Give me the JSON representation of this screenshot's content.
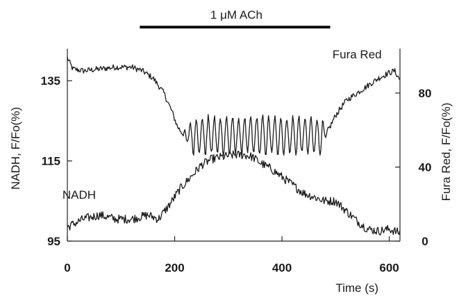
{
  "chart_data": {
    "type": "line",
    "title": "",
    "xlabel": "Time (s)",
    "ylabel_left": "NADH, F/Fo(%)",
    "ylabel_right": "Fura Red, F/Fo(%)",
    "xlim": [
      0,
      620
    ],
    "ylim_left": [
      95,
      143
    ],
    "ylim_right": [
      0,
      104
    ],
    "x_ticks": [
      "0",
      "200",
      "400",
      "600"
    ],
    "y_left_ticks": [
      "95",
      "115",
      "135"
    ],
    "y_right_ticks": [
      "0",
      "40",
      "80"
    ],
    "grid": false,
    "legend": "none",
    "annotations": {
      "stimulus_label": "1 μM ACh",
      "stimulus_range": [
        135,
        490
      ]
    },
    "series": [
      {
        "name": "Fura Red",
        "axis": "right",
        "label_position": "top-right",
        "x": [
          0,
          10,
          30,
          60,
          90,
          120,
          140,
          160,
          180,
          195,
          205,
          215,
          220,
          480,
          490,
          500,
          520,
          540,
          560,
          580,
          600,
          610,
          620
        ],
        "y": [
          99,
          93,
          92,
          93,
          94,
          94,
          92,
          88,
          80,
          70,
          62,
          58,
          57,
          57,
          62,
          68,
          76,
          80,
          84,
          88,
          91,
          92,
          87
        ],
        "oscillation": {
          "x_start": 215,
          "x_end": 485,
          "cycles": 24,
          "amplitude": 10
        }
      },
      {
        "name": "NADH",
        "axis": "left",
        "label_position": "left",
        "x": [
          0,
          30,
          60,
          90,
          120,
          150,
          170,
          190,
          210,
          230,
          250,
          270,
          290,
          310,
          330,
          345,
          360,
          380,
          400,
          420,
          440,
          460,
          480,
          500,
          520,
          540,
          560,
          580,
          600,
          620
        ],
        "y": [
          98.5,
          100.5,
          101.5,
          100.5,
          100.5,
          101.5,
          100.5,
          104,
          108,
          111,
          114,
          115.5,
          116,
          116.5,
          116.5,
          116,
          114.5,
          113,
          111,
          109,
          107,
          106,
          105,
          105,
          102.5,
          100,
          98,
          97.5,
          98,
          97
        ]
      }
    ]
  }
}
